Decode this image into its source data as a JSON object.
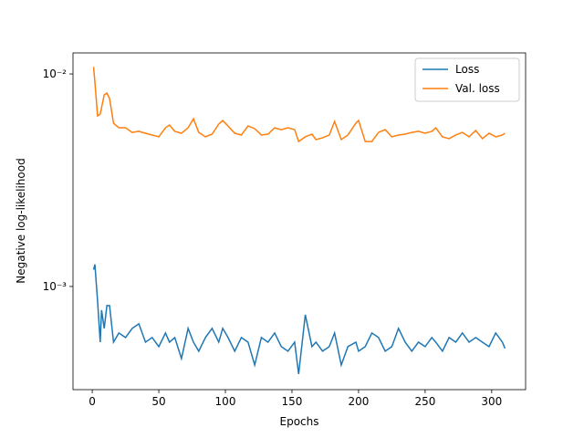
{
  "chart_data": {
    "type": "line",
    "xlabel": "Epochs",
    "ylabel": "Negative log-likelihood",
    "x": [
      1,
      2,
      4,
      6,
      7,
      9,
      11,
      13,
      16,
      20,
      25,
      30,
      35,
      40,
      45,
      50,
      55,
      58,
      62,
      67,
      72,
      76,
      80,
      85,
      90,
      95,
      98,
      102,
      107,
      112,
      117,
      122,
      127,
      132,
      137,
      142,
      147,
      152,
      155,
      160,
      165,
      168,
      173,
      178,
      182,
      187,
      192,
      198,
      200,
      205,
      210,
      215,
      220,
      225,
      230,
      235,
      240,
      245,
      250,
      255,
      258,
      263,
      268,
      273,
      278,
      283,
      288,
      293,
      298,
      303,
      308,
      310
    ],
    "series": [
      {
        "name": "Loss",
        "color": "#1f77b4",
        "values": [
          0.0012,
          0.00127,
          0.000854,
          0.000547,
          0.000774,
          0.000635,
          0.000813,
          0.000813,
          0.000547,
          0.000604,
          0.000575,
          0.000635,
          0.000667,
          0.000547,
          0.000575,
          0.000521,
          0.000604,
          0.000547,
          0.000575,
          0.000458,
          0.000635,
          0.000547,
          0.000496,
          0.000575,
          0.000635,
          0.000547,
          0.000635,
          0.000575,
          0.000496,
          0.000575,
          0.000547,
          0.000427,
          0.000575,
          0.000547,
          0.000604,
          0.000521,
          0.000496,
          0.000547,
          0.000387,
          0.000736,
          0.000521,
          0.000547,
          0.000496,
          0.000521,
          0.000604,
          0.000427,
          0.000521,
          0.000547,
          0.000496,
          0.000521,
          0.000604,
          0.000575,
          0.000496,
          0.000521,
          0.000635,
          0.000547,
          0.000496,
          0.000547,
          0.000521,
          0.000575,
          0.000547,
          0.000496,
          0.000575,
          0.000547,
          0.000604,
          0.000547,
          0.000575,
          0.000547,
          0.000521,
          0.000604,
          0.000547,
          0.000511
        ]
      },
      {
        "name": "Val. loss",
        "color": "#ff7f0e",
        "values": [
          0.0108,
          0.00915,
          0.00635,
          0.00647,
          0.00694,
          0.00797,
          0.00813,
          0.00766,
          0.00587,
          0.00558,
          0.00558,
          0.00531,
          0.00537,
          0.00526,
          0.00516,
          0.00506,
          0.00558,
          0.00575,
          0.00537,
          0.00526,
          0.00558,
          0.00616,
          0.00531,
          0.00506,
          0.00521,
          0.00581,
          0.00604,
          0.00569,
          0.00526,
          0.00516,
          0.00569,
          0.00553,
          0.00516,
          0.00521,
          0.00558,
          0.00547,
          0.00558,
          0.00547,
          0.00481,
          0.00506,
          0.00521,
          0.00491,
          0.00501,
          0.00516,
          0.00598,
          0.00491,
          0.00516,
          0.00587,
          0.00604,
          0.00481,
          0.00481,
          0.00531,
          0.00547,
          0.00506,
          0.00516,
          0.00521,
          0.00531,
          0.00537,
          0.00526,
          0.00537,
          0.00558,
          0.00506,
          0.00496,
          0.00516,
          0.00531,
          0.00506,
          0.00542,
          0.00496,
          0.00526,
          0.00506,
          0.00516,
          0.00526
        ]
      }
    ],
    "xlim": [
      -14.45,
      325.45
    ],
    "xticks": [
      0,
      50,
      100,
      150,
      200,
      250,
      300
    ],
    "ylim": [
      0.000327,
      0.01256
    ],
    "yscale": "log",
    "yticks": [
      {
        "value": 0.001,
        "label": "10⁻³"
      },
      {
        "value": 0.01,
        "label": "10⁻²"
      }
    ],
    "legend": "upper right"
  }
}
